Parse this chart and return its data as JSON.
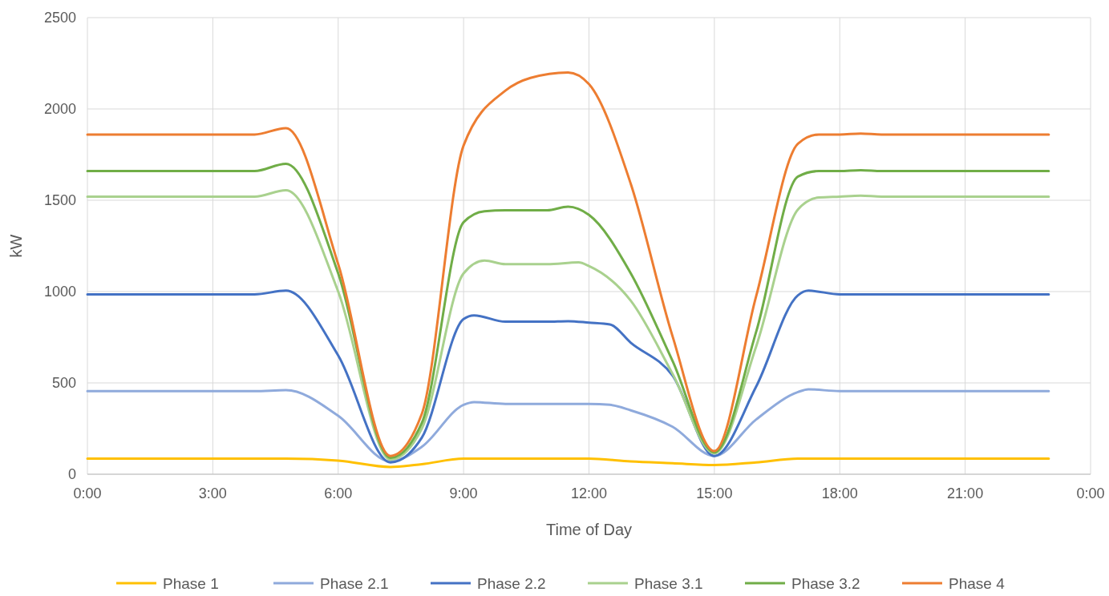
{
  "chart_data": {
    "type": "line",
    "xlabel": "Time of Day",
    "ylabel": "kW",
    "xlim": [
      0,
      24
    ],
    "ylim": [
      0,
      2500
    ],
    "xticks": [
      {
        "value": 0,
        "label": "0:00"
      },
      {
        "value": 3,
        "label": "3:00"
      },
      {
        "value": 6,
        "label": "6:00"
      },
      {
        "value": 9,
        "label": "9:00"
      },
      {
        "value": 12,
        "label": "12:00"
      },
      {
        "value": 15,
        "label": "15:00"
      },
      {
        "value": 18,
        "label": "18:00"
      },
      {
        "value": 21,
        "label": "21:00"
      },
      {
        "value": 24,
        "label": "0:00"
      }
    ],
    "yticks": [
      0,
      500,
      1000,
      1500,
      2000,
      2500
    ],
    "grid": true,
    "legend": "bottom",
    "marker": "none",
    "line_style": "solid",
    "series": [
      {
        "name": "Phase 1",
        "color": "#ffc000",
        "x": [
          0,
          4,
          4.75,
          6,
          7.25,
          8,
          9,
          10,
          12,
          13,
          14,
          15,
          16,
          17,
          18,
          23
        ],
        "values": [
          85,
          85,
          85,
          75,
          40,
          55,
          85,
          85,
          85,
          70,
          60,
          50,
          65,
          85,
          85,
          85
        ]
      },
      {
        "name": "Phase 2.1",
        "color": "#8faadc",
        "x": [
          0,
          4,
          4.75,
          6,
          7.25,
          8,
          9,
          9.25,
          10,
          11,
          12,
          12.5,
          13,
          14,
          15,
          16,
          17,
          17.25,
          18,
          23
        ],
        "values": [
          455,
          455,
          460,
          320,
          70,
          150,
          380,
          395,
          385,
          385,
          385,
          380,
          350,
          260,
          100,
          300,
          450,
          465,
          455,
          455
        ]
      },
      {
        "name": "Phase 2.2",
        "color": "#4472c4",
        "x": [
          0,
          4,
          4.75,
          6,
          7.25,
          8,
          9,
          9.25,
          10,
          11,
          11.5,
          12,
          12.5,
          13,
          14,
          15,
          16,
          17,
          17.25,
          18,
          23
        ],
        "values": [
          985,
          985,
          1005,
          650,
          65,
          200,
          850,
          870,
          835,
          835,
          838,
          830,
          820,
          720,
          540,
          100,
          480,
          980,
          1005,
          985,
          985
        ]
      },
      {
        "name": "Phase 3.1",
        "color": "#a9d18e",
        "x": [
          0,
          4,
          4.75,
          6,
          7.25,
          8,
          9,
          9.5,
          10,
          11,
          11.75,
          12,
          13,
          14,
          15,
          16,
          17,
          17.5,
          18,
          18.5,
          19,
          23
        ],
        "values": [
          1520,
          1520,
          1555,
          1000,
          80,
          250,
          1100,
          1170,
          1150,
          1150,
          1160,
          1140,
          950,
          550,
          115,
          700,
          1450,
          1515,
          1520,
          1525,
          1520,
          1520
        ]
      },
      {
        "name": "Phase 3.2",
        "color": "#70ad47",
        "x": [
          0,
          4,
          4.75,
          6,
          7.25,
          8,
          9,
          9.5,
          10,
          11,
          11.5,
          12,
          13,
          14,
          15,
          16,
          17,
          17.5,
          18,
          18.5,
          19,
          23
        ],
        "values": [
          1660,
          1660,
          1700,
          1100,
          90,
          280,
          1380,
          1440,
          1445,
          1445,
          1465,
          1420,
          1100,
          620,
          120,
          780,
          1630,
          1660,
          1660,
          1665,
          1660,
          1660
        ]
      },
      {
        "name": "Phase 4",
        "color": "#ed7d31",
        "x": [
          0,
          4,
          4.75,
          6,
          7.25,
          8,
          9,
          10,
          10.6,
          11.5,
          12,
          13,
          14,
          15,
          16,
          17,
          17.5,
          18,
          18.5,
          19,
          23
        ],
        "values": [
          1860,
          1860,
          1895,
          1150,
          100,
          330,
          1800,
          2100,
          2170,
          2200,
          2136,
          1590,
          755,
          127,
          975,
          1810,
          1860,
          1860,
          1865,
          1860,
          1860
        ]
      }
    ]
  }
}
